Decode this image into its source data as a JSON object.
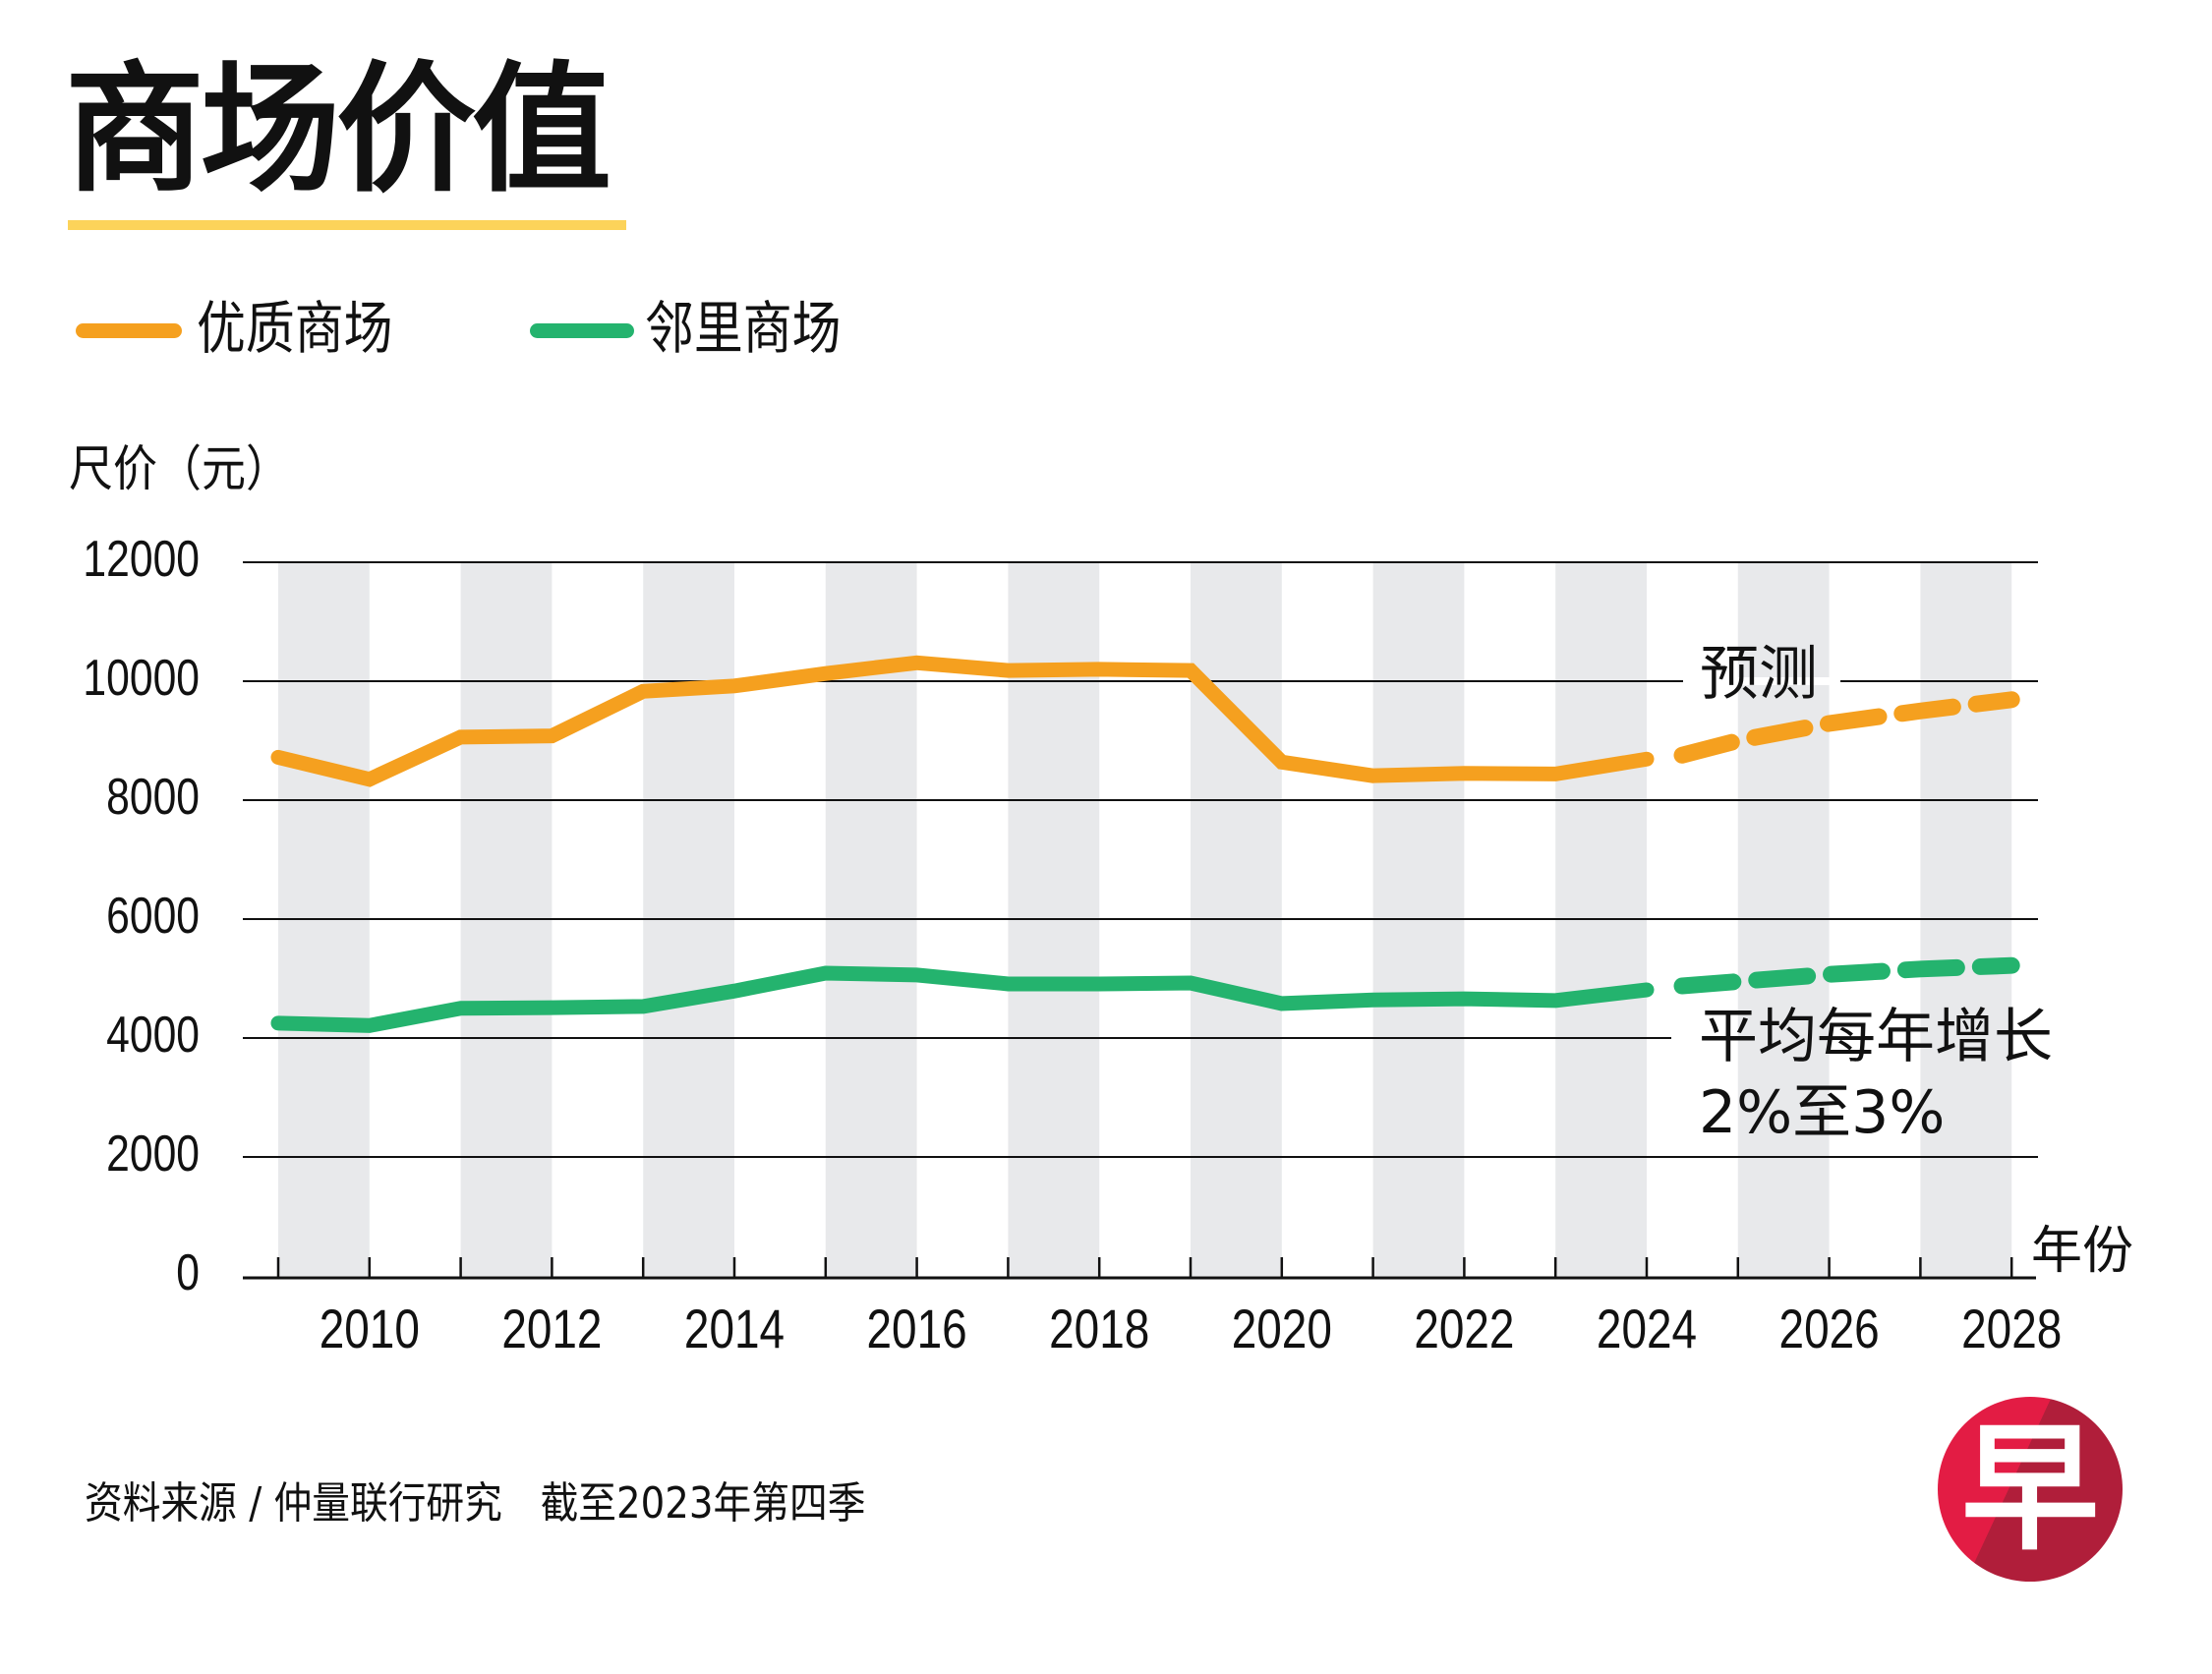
{
  "header": {
    "title": "商场价值"
  },
  "legend": [
    {
      "label": "优质商场",
      "color": "#f5a01f"
    },
    {
      "label": "邻里商场",
      "color": "#24b36e"
    }
  ],
  "footer": {
    "source": "资料来源 / 仲量联行研究　截至2023年第四季"
  },
  "logo": {
    "glyph": "早",
    "colors": [
      "#e31c44",
      "#b01e3a"
    ]
  },
  "colors": {
    "band": "#e8e9eb",
    "grid": "#111111",
    "underline": "#fcd35a"
  },
  "chart_data": {
    "type": "line",
    "title": "商场价值",
    "xlabel": "年份",
    "ylabel": "尺价（元）",
    "ylim": [
      0,
      12000
    ],
    "yticks": [
      0,
      2000,
      4000,
      6000,
      8000,
      10000,
      12000
    ],
    "xlim": [
      2009,
      2028
    ],
    "xticks": [
      2010,
      2012,
      2014,
      2016,
      2018,
      2020,
      2022,
      2024,
      2026,
      2028
    ],
    "grid": "horizontal",
    "alternating_year_bands": true,
    "legend_position": "top-left",
    "x": [
      2009,
      2010,
      2011,
      2012,
      2013,
      2014,
      2015,
      2016,
      2017,
      2018,
      2019,
      2020,
      2021,
      2022,
      2023,
      2024
    ],
    "series": [
      {
        "name": "优质商场",
        "color": "#f5a01f",
        "values": [
          8720,
          8350,
          9060,
          9080,
          9830,
          9920,
          10130,
          10310,
          10180,
          10200,
          10180,
          8640,
          8410,
          8450,
          8440,
          8690
        ],
        "forecast": {
          "x": [
            2024,
            2025,
            2026,
            2027,
            2028
          ],
          "values": [
            8690,
            9000,
            9290,
            9500,
            9690
          ]
        }
      },
      {
        "name": "邻里商场",
        "color": "#24b36e",
        "values": [
          4250,
          4210,
          4500,
          4510,
          4530,
          4790,
          5090,
          5060,
          4910,
          4910,
          4925,
          4580,
          4640,
          4660,
          4630,
          4810
        ],
        "forecast": {
          "x": [
            2024,
            2025,
            2026,
            2027,
            2028
          ],
          "values": [
            4810,
            4950,
            5070,
            5160,
            5220
          ]
        }
      }
    ],
    "annotations": [
      {
        "text": "预测",
        "target": "优质商场 forecast"
      },
      {
        "text": "平均每年增长",
        "target": "邻里商场 forecast"
      },
      {
        "text": "2%至3%",
        "target": "邻里商场 forecast"
      }
    ]
  }
}
